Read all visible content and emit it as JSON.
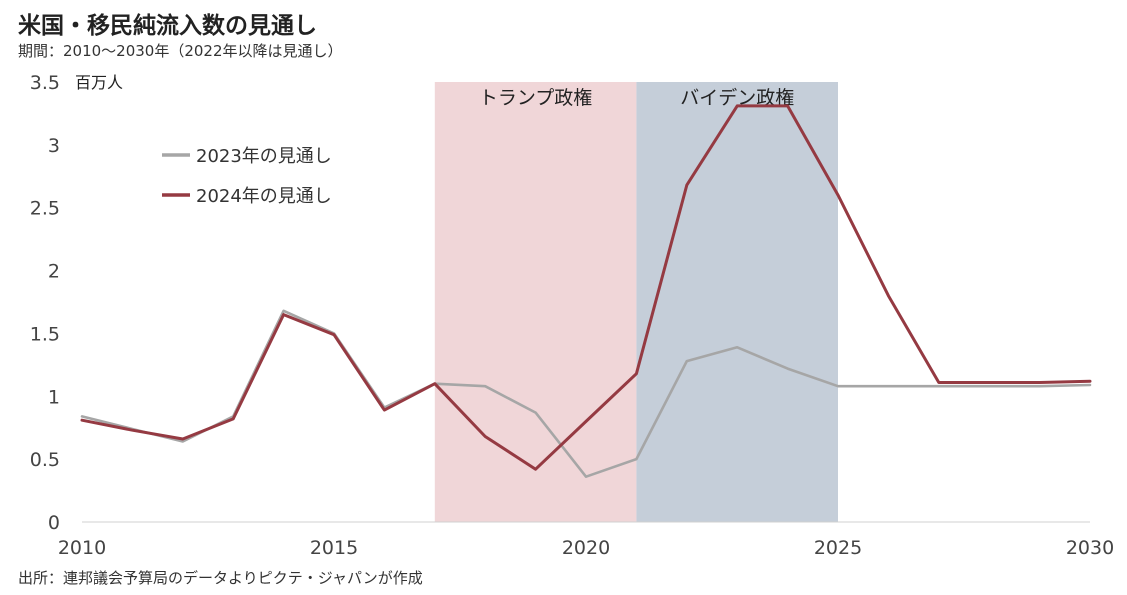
{
  "header": {
    "title": "米国・移民純流入数の見通し",
    "subtitle": "期間：2010～2030年（2022年以降は見通し）"
  },
  "footer": {
    "source": "出所：連邦議会予算局のデータよりピクテ・ジャパンが作成"
  },
  "chart_data": {
    "type": "line",
    "title": "米国・移民純流入数の見通し",
    "unit_label": "百万人",
    "xlim": [
      2010,
      2030
    ],
    "ylim": [
      0,
      3.5
    ],
    "x_ticks": [
      "2010",
      "2015",
      "2020",
      "2025",
      "2030"
    ],
    "y_ticks": [
      "0",
      "0.5",
      "1",
      "1.5",
      "2",
      "2.5",
      "3",
      "3.5"
    ],
    "grid": false,
    "legend_position": "top-left",
    "shaded_regions": [
      {
        "label": "トランプ政権",
        "start": 2017,
        "end": 2021,
        "color": "#f0d6d8"
      },
      {
        "label": "バイデン政権",
        "start": 2021,
        "end": 2025,
        "color": "#c5ced9"
      }
    ],
    "x": [
      2010,
      2011,
      2012,
      2013,
      2014,
      2015,
      2016,
      2017,
      2018,
      2019,
      2020,
      2021,
      2022,
      2023,
      2024,
      2025,
      2026,
      2027,
      2028,
      2029,
      2030
    ],
    "series": [
      {
        "name": "2023年の見通し",
        "color": "#a6a6a6",
        "values": [
          0.84,
          0.74,
          0.64,
          0.84,
          1.68,
          1.5,
          0.91,
          1.1,
          1.08,
          0.87,
          0.36,
          0.5,
          1.28,
          1.39,
          1.22,
          1.08,
          1.08,
          1.08,
          1.08,
          1.08,
          1.09
        ]
      },
      {
        "name": "2024年の見通し",
        "color": "#953a42",
        "values": [
          0.81,
          0.73,
          0.66,
          0.82,
          1.65,
          1.49,
          0.89,
          1.1,
          0.68,
          0.42,
          0.8,
          1.18,
          2.68,
          3.31,
          3.31,
          2.6,
          1.8,
          1.11,
          1.11,
          1.11,
          1.12
        ]
      }
    ]
  }
}
